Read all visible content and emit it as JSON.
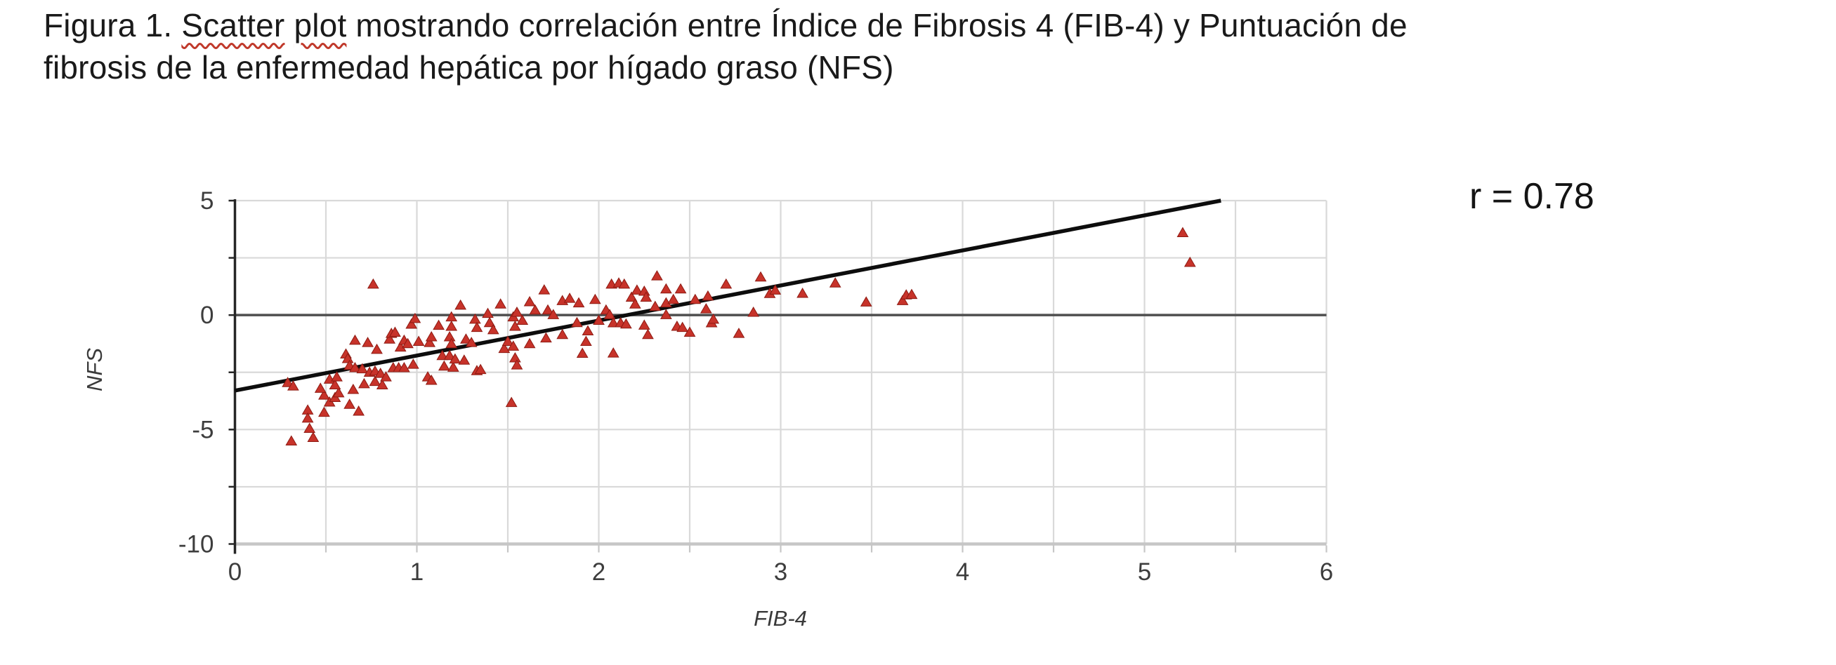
{
  "figure": {
    "title_line1_pre": "Figura 1.",
    "misspelled_word_1": "Scatter",
    "misspelled_word_2": "plot",
    "title_line1_post": "mostrando correlación entre Índice de Fibrosis 4 (FIB-4) y Puntuación de",
    "title_line2": "fibrosis de la enfermedad hepática por hígado graso (NFS)"
  },
  "annotation": {
    "r_label": "r = 0.78"
  },
  "colors": {
    "marker": "#c7332a",
    "marker_edge": "#8e1a12",
    "trend_line": "#0d0d0d",
    "grid": "#d9d9d9",
    "zero_line": "#4f4f4f",
    "axis": "#262626",
    "bottom_line": "#c6c6c6",
    "squiggle": "#c0392b",
    "tick_text": "#3d3d3d"
  },
  "chart_data": {
    "type": "scatter",
    "title": "Figura 1. Scatter plot mostrando correlación entre Índice de Fibrosis 4 (FIB-4) y Puntuación de fibrosis de la enfermedad hepática por hígado graso (NFS)",
    "xlabel": "FIB-4",
    "ylabel": "NFS",
    "xlim": [
      0,
      6
    ],
    "ylim": [
      -10,
      5
    ],
    "x_ticks": [
      0,
      1,
      2,
      3,
      4,
      5,
      6
    ],
    "y_ticks": [
      5,
      0,
      -5,
      -10
    ],
    "x_minor_grid_step": 0.5,
    "y_grid_lines": [
      5,
      2.5,
      -2.5,
      -5,
      -7.5
    ],
    "grid": true,
    "legend": "none",
    "correlation_r": 0.78,
    "marker_shape": "triangle-up",
    "trendline": {
      "x1": 0,
      "y1": -3.3,
      "x2": 5.42,
      "y2": 5
    },
    "points": [
      [
        0.76,
        1.35
      ],
      [
        0.29,
        -2.95
      ],
      [
        0.32,
        -3.1
      ],
      [
        0.31,
        -5.5
      ],
      [
        0.4,
        -4.15
      ],
      [
        0.4,
        -4.5
      ],
      [
        0.41,
        -4.95
      ],
      [
        0.43,
        -5.35
      ],
      [
        0.49,
        -4.25
      ],
      [
        0.49,
        -3.5
      ],
      [
        0.52,
        -3.8
      ],
      [
        0.55,
        -3.6
      ],
      [
        0.57,
        -3.4
      ],
      [
        0.63,
        -3.9
      ],
      [
        0.68,
        -4.2
      ],
      [
        0.47,
        -3.2
      ],
      [
        0.52,
        -2.8
      ],
      [
        0.55,
        -3.05
      ],
      [
        0.56,
        -2.7
      ],
      [
        0.61,
        -1.7
      ],
      [
        0.62,
        -1.9
      ],
      [
        0.63,
        -2.2
      ],
      [
        0.65,
        -3.25
      ],
      [
        0.66,
        -2.3
      ],
      [
        0.66,
        -1.1
      ],
      [
        0.7,
        -2.35
      ],
      [
        0.71,
        -3.0
      ],
      [
        0.73,
        -1.2
      ],
      [
        0.74,
        -2.5
      ],
      [
        0.77,
        -2.45
      ],
      [
        0.77,
        -2.9
      ],
      [
        0.78,
        -1.5
      ],
      [
        0.8,
        -2.55
      ],
      [
        0.81,
        -3.05
      ],
      [
        0.83,
        -2.7
      ],
      [
        0.85,
        -1.05
      ],
      [
        0.86,
        -0.8
      ],
      [
        0.87,
        -2.3
      ],
      [
        0.88,
        -0.75
      ],
      [
        0.9,
        -2.3
      ],
      [
        0.91,
        -1.4
      ],
      [
        0.93,
        -1.1
      ],
      [
        0.93,
        -2.3
      ],
      [
        0.95,
        -1.25
      ],
      [
        0.98,
        -2.15
      ],
      [
        0.97,
        -0.4
      ],
      [
        0.99,
        -0.15
      ],
      [
        1.01,
        -1.15
      ],
      [
        1.07,
        -1.2
      ],
      [
        1.08,
        -0.95
      ],
      [
        1.14,
        -1.77
      ],
      [
        1.18,
        -1.77
      ],
      [
        1.15,
        -2.23
      ],
      [
        1.2,
        -2.28
      ],
      [
        1.06,
        -2.7
      ],
      [
        1.08,
        -2.85
      ],
      [
        1.12,
        -0.45
      ],
      [
        1.18,
        -0.95
      ],
      [
        1.19,
        -0.08
      ],
      [
        1.19,
        -0.49
      ],
      [
        1.19,
        -1.25
      ],
      [
        1.21,
        -1.92
      ],
      [
        1.24,
        0.43
      ],
      [
        1.26,
        -1.97
      ],
      [
        1.27,
        -1.05
      ],
      [
        1.3,
        -1.2
      ],
      [
        1.32,
        -0.18
      ],
      [
        1.33,
        -0.54
      ],
      [
        1.33,
        -2.43
      ],
      [
        1.35,
        -2.38
      ],
      [
        1.39,
        0.07
      ],
      [
        1.4,
        -0.33
      ],
      [
        1.42,
        -0.64
      ],
      [
        1.46,
        0.48
      ],
      [
        1.48,
        -1.46
      ],
      [
        1.5,
        -1.15
      ],
      [
        1.52,
        -3.82
      ],
      [
        1.53,
        -1.36
      ],
      [
        1.53,
        -0.08
      ],
      [
        1.54,
        -0.49
      ],
      [
        1.54,
        -1.87
      ],
      [
        1.55,
        -2.18
      ],
      [
        1.55,
        0.12
      ],
      [
        1.58,
        -0.23
      ],
      [
        1.62,
        0.58
      ],
      [
        1.62,
        -1.25
      ],
      [
        1.65,
        0.22
      ],
      [
        1.7,
        1.1
      ],
      [
        1.71,
        -1.0
      ],
      [
        1.72,
        0.22
      ],
      [
        1.75,
        0.02
      ],
      [
        1.8,
        0.63
      ],
      [
        1.8,
        -0.85
      ],
      [
        1.84,
        0.73
      ],
      [
        1.88,
        -0.33
      ],
      [
        1.89,
        0.53
      ],
      [
        1.91,
        -1.67
      ],
      [
        1.93,
        -1.15
      ],
      [
        1.94,
        -0.69
      ],
      [
        1.98,
        0.68
      ],
      [
        2.0,
        -0.23
      ],
      [
        2.04,
        0.22
      ],
      [
        2.06,
        0.02
      ],
      [
        2.07,
        1.35
      ],
      [
        2.08,
        -0.34
      ],
      [
        2.08,
        -1.66
      ],
      [
        2.11,
        1.4
      ],
      [
        2.12,
        -0.34
      ],
      [
        2.14,
        1.35
      ],
      [
        2.15,
        -0.39
      ],
      [
        2.18,
        0.78
      ],
      [
        2.2,
        0.48
      ],
      [
        2.21,
        1.09
      ],
      [
        2.25,
        1.04
      ],
      [
        2.25,
        -0.44
      ],
      [
        2.26,
        0.78
      ],
      [
        2.27,
        -0.85
      ],
      [
        2.31,
        0.38
      ],
      [
        2.32,
        1.71
      ],
      [
        2.37,
        1.14
      ],
      [
        2.37,
        0.53
      ],
      [
        2.37,
        0.02
      ],
      [
        2.41,
        0.68
      ],
      [
        2.43,
        -0.49
      ],
      [
        2.45,
        1.14
      ],
      [
        2.46,
        -0.54
      ],
      [
        2.5,
        -0.75
      ],
      [
        2.53,
        0.68
      ],
      [
        2.59,
        0.27
      ],
      [
        2.6,
        0.83
      ],
      [
        2.62,
        -0.34
      ],
      [
        2.63,
        -0.18
      ],
      [
        2.7,
        1.35
      ],
      [
        2.77,
        -0.8
      ],
      [
        2.85,
        0.12
      ],
      [
        2.89,
        1.66
      ],
      [
        2.94,
        0.94
      ],
      [
        2.97,
        1.09
      ],
      [
        3.12,
        0.95
      ],
      [
        3.3,
        1.4
      ],
      [
        3.47,
        0.57
      ],
      [
        3.67,
        0.63
      ],
      [
        3.69,
        0.88
      ],
      [
        3.72,
        0.9
      ],
      [
        5.21,
        3.6
      ],
      [
        5.25,
        2.3
      ]
    ]
  }
}
